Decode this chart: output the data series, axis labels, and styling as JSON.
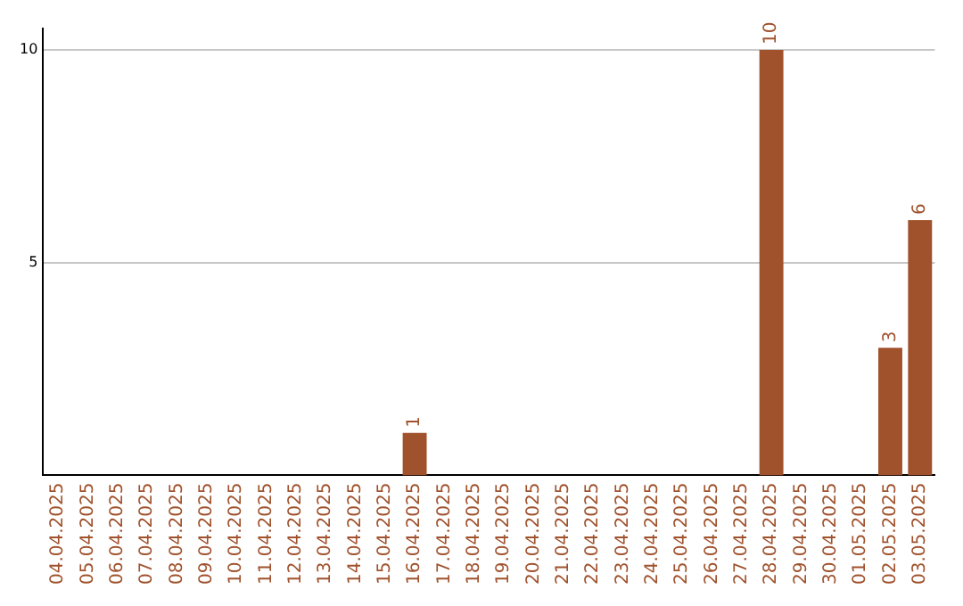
{
  "chart_data": {
    "type": "bar",
    "categories": [
      "04.04.2025",
      "05.04.2025",
      "06.04.2025",
      "07.04.2025",
      "08.04.2025",
      "09.04.2025",
      "10.04.2025",
      "11.04.2025",
      "12.04.2025",
      "13.04.2025",
      "14.04.2025",
      "15.04.2025",
      "16.04.2025",
      "17.04.2025",
      "18.04.2025",
      "19.04.2025",
      "20.04.2025",
      "21.04.2025",
      "22.04.2025",
      "23.04.2025",
      "24.04.2025",
      "25.04.2025",
      "26.04.2025",
      "27.04.2025",
      "28.04.2025",
      "29.04.2025",
      "30.04.2025",
      "01.05.2025",
      "02.05.2025",
      "03.05.2025"
    ],
    "values": [
      0,
      0,
      0,
      0,
      0,
      0,
      0,
      0,
      0,
      0,
      0,
      0,
      1,
      0,
      0,
      0,
      0,
      0,
      0,
      0,
      0,
      0,
      0,
      0,
      10,
      0,
      0,
      0,
      3,
      6
    ],
    "value_labels": [
      null,
      null,
      null,
      null,
      null,
      null,
      null,
      null,
      null,
      null,
      null,
      null,
      "1",
      null,
      null,
      null,
      null,
      null,
      null,
      null,
      null,
      null,
      null,
      null,
      "10",
      null,
      null,
      null,
      "3",
      "6"
    ],
    "color": "#a0522d",
    "ylim": [
      0,
      10.5
    ],
    "yticks": [
      5,
      10
    ],
    "grid": "y",
    "legend": false
  }
}
